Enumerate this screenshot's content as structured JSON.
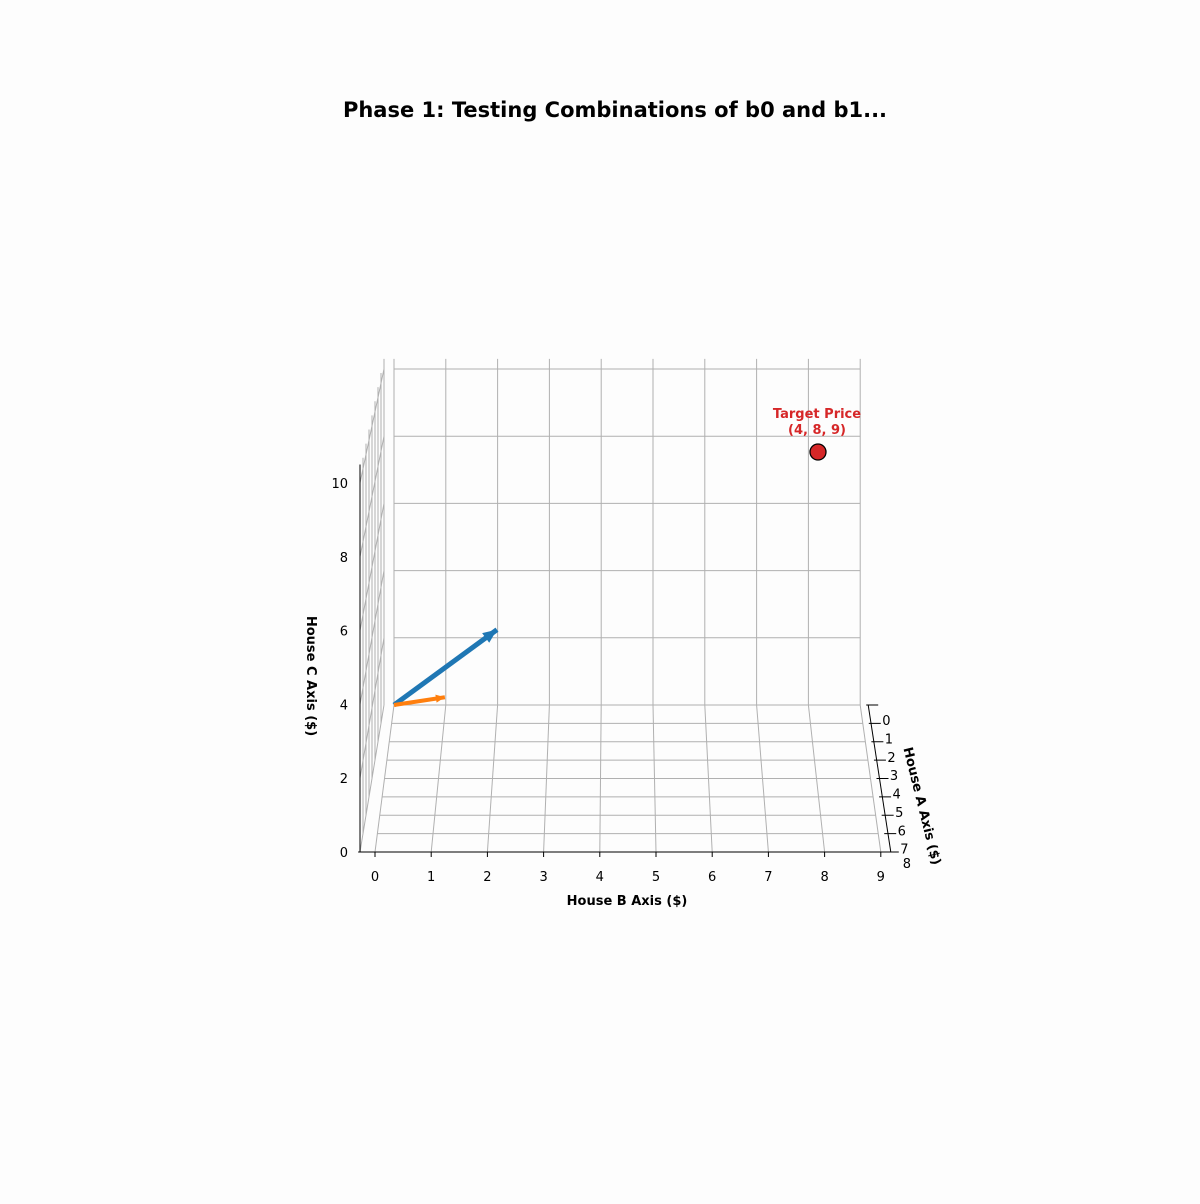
{
  "chart_data": {
    "type": "3d-quiver",
    "title": "Phase 1: Testing Combinations of b0 and b1...",
    "xlabel": "House A Axis ($)",
    "ylabel": "House B Axis ($)",
    "zlabel": "House C Axis ($)",
    "xlim": [
      0,
      8
    ],
    "ylim": [
      0,
      9
    ],
    "zlim": [
      0,
      10.3
    ],
    "x_ticks": [
      "0",
      "1",
      "2",
      "3",
      "4",
      "5",
      "6",
      "7",
      "8"
    ],
    "y_ticks": [
      "0",
      "1",
      "2",
      "3",
      "4",
      "5",
      "6",
      "7",
      "8",
      "9"
    ],
    "z_ticks": [
      "0",
      "2",
      "4",
      "6",
      "8",
      "10"
    ],
    "grid": true,
    "vectors": [
      {
        "origin": [
          0,
          0,
          0
        ],
        "components": [
          0.5,
          2,
          2.5
        ],
        "color": "#1f77b4"
      },
      {
        "origin": [
          0,
          0,
          0
        ],
        "components": [
          0.5,
          1,
          0.5
        ],
        "color": "#ff7f0e"
      }
    ],
    "target": {
      "point": [
        4,
        8,
        9
      ],
      "label_line1": "Target Price",
      "label_line2": "(4, 8, 9)",
      "color": "#d62728"
    }
  }
}
